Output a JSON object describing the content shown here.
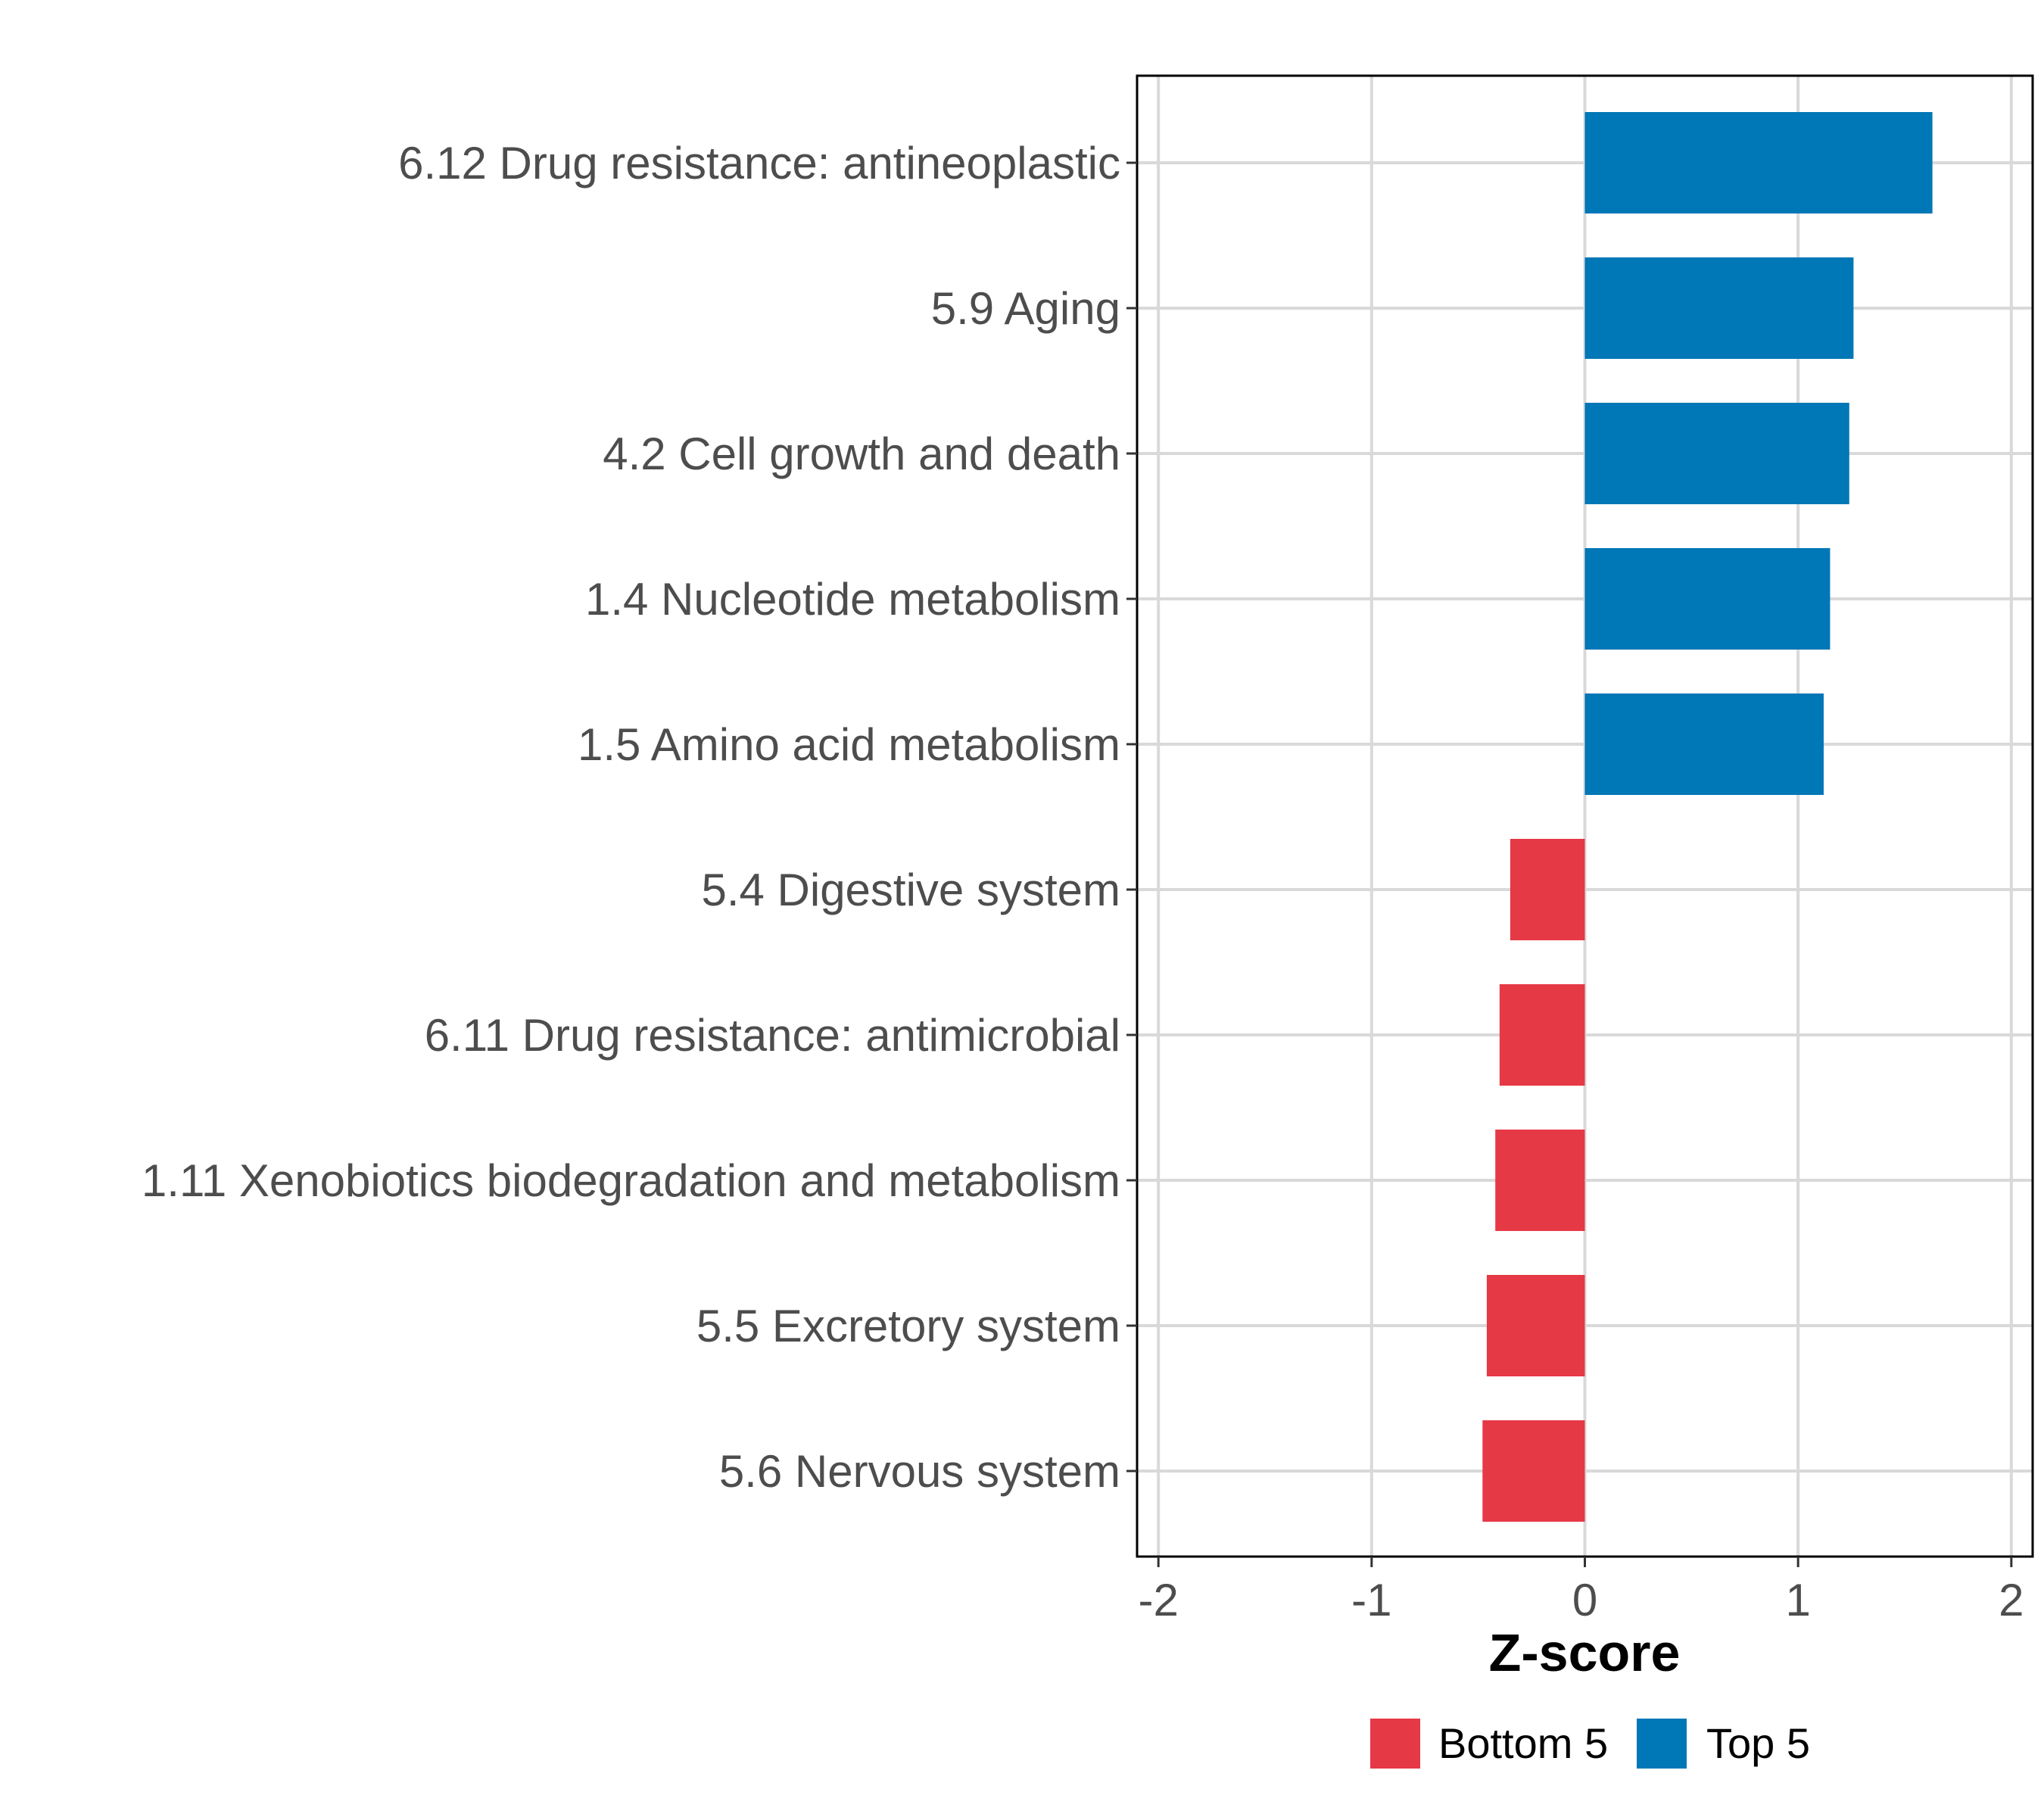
{
  "chart_data": {
    "type": "bar",
    "orientation": "horizontal",
    "title": "",
    "xlabel": "Z-score",
    "ylabel": "",
    "xlim": [
      -2.1,
      2.1
    ],
    "xticks": [
      -2,
      -1,
      0,
      1,
      2
    ],
    "xtick_labels": [
      "-2",
      "-1",
      "0",
      "1",
      "2"
    ],
    "grid": true,
    "categories": [
      "6.12 Drug resistance: antineoplastic",
      "5.9 Aging",
      "4.2 Cell growth and death",
      "1.4 Nucleotide metabolism",
      "1.5 Amino acid metabolism",
      "5.4 Digestive system",
      "6.11 Drug resistance: antimicrobial",
      "1.11 Xenobiotics biodegradation and metabolism",
      "5.5 Excretory system",
      "5.6 Nervous system"
    ],
    "values": [
      1.63,
      1.26,
      1.24,
      1.15,
      1.12,
      -0.35,
      -0.4,
      -0.42,
      -0.46,
      -0.48
    ],
    "groups": [
      "Top 5",
      "Top 5",
      "Top 5",
      "Top 5",
      "Top 5",
      "Bottom 5",
      "Bottom 5",
      "Bottom 5",
      "Bottom 5",
      "Bottom 5"
    ],
    "legend": {
      "position": "bottom",
      "entries": [
        {
          "label": "Bottom 5",
          "color": "#e63946"
        },
        {
          "label": "Top 5",
          "color": "#0077b6"
        }
      ]
    }
  }
}
